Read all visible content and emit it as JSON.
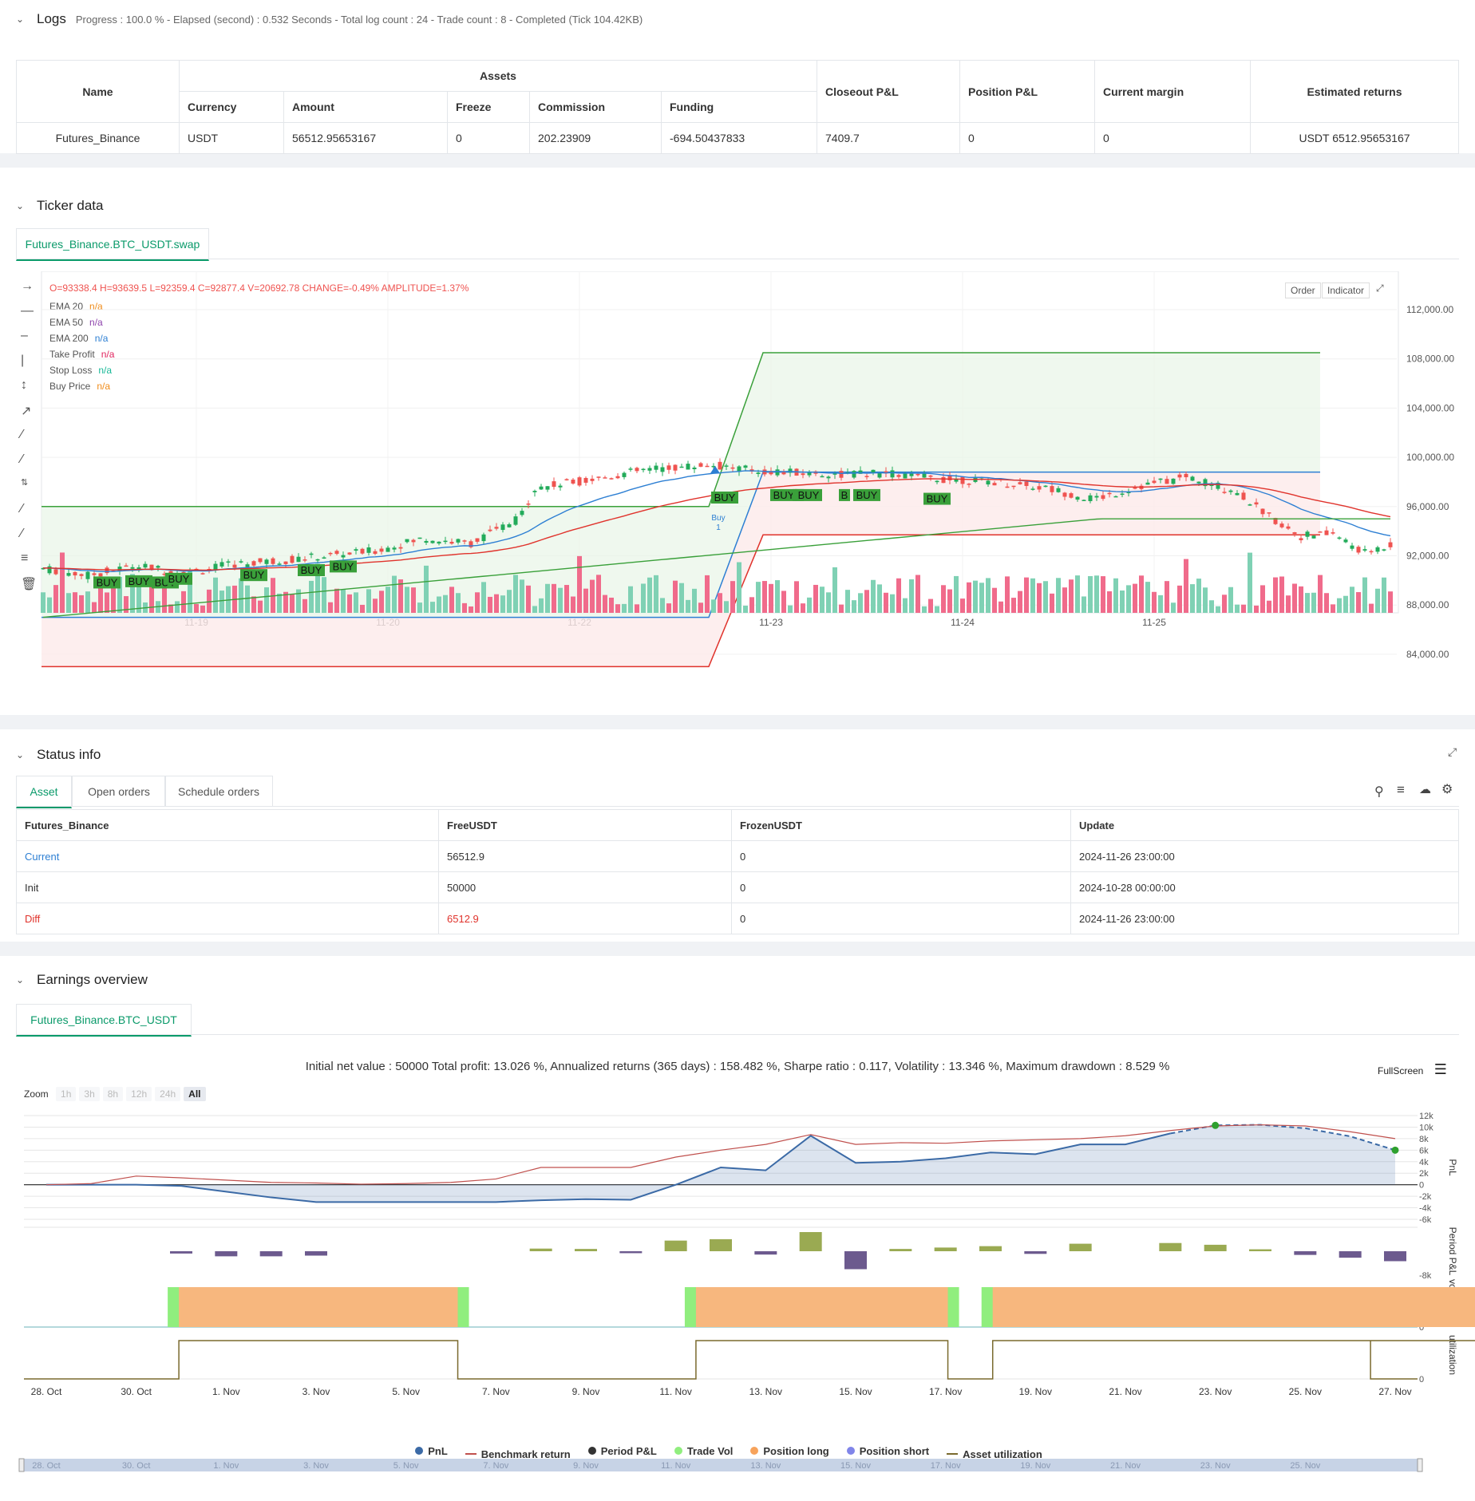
{
  "logs": {
    "title": "Logs",
    "progress": "Progress : 100.0 % - Elapsed (second) : 0.532  Seconds - Total log count : 24 - Trade count : 8 - Completed (Tick 104.42KB)",
    "table": {
      "name_header": "Name",
      "assets_header": "Assets",
      "sub_headers": [
        "Currency",
        "Amount",
        "Freeze",
        "Commission",
        "Funding"
      ],
      "closeout": "Closeout P&L",
      "position": "Position P&L",
      "margin": "Current margin",
      "est": "Estimated returns",
      "row": [
        "Futures_Binance",
        "USDT",
        "56512.95653167",
        "0",
        "202.23909",
        "-694.50437833",
        "7409.7",
        "0",
        "0",
        "USDT 6512.95653167"
      ]
    }
  },
  "ticker": {
    "title": "Ticker data",
    "tab": "Futures_Binance.BTC_USDT.swap",
    "ohlc": "O=93338.4 H=93639.5 L=92359.4 C=92877.4 V=20692.78 CHANGE=-0.49% AMPLITUDE=1.37%",
    "legend": [
      {
        "label": "EMA 20",
        "val": "n/a",
        "color": "#f08c1a"
      },
      {
        "label": "EMA 50",
        "val": "n/a",
        "color": "#8e44ad"
      },
      {
        "label": "EMA 200",
        "val": "n/a",
        "color": "#2d7fd3"
      },
      {
        "label": "Take Profit",
        "val": "n/a",
        "color": "#e0245e"
      },
      {
        "label": "Stop Loss",
        "val": "n/a",
        "color": "#17b897"
      },
      {
        "label": "Buy Price",
        "val": "n/a",
        "color": "#f08c1a"
      }
    ],
    "buttons": {
      "order": "Order",
      "indicator": "Indicator"
    },
    "y_ticks": [
      "112,000.00",
      "108,000.00",
      "104,000.00",
      "100,000.00",
      "96,000.00",
      "92,000.00",
      "88,000.00",
      "84,000.00"
    ],
    "x_ticks": [
      "11-19",
      "11-20",
      "11-22",
      "11-23",
      "11-24",
      "11-25"
    ],
    "buy_label": "BUY",
    "b_label": "B",
    "buy_marker": "Buy",
    "buy_marker_n": "1",
    "colors": {
      "up": "#26a69a",
      "down": "#ef5350",
      "up_bright": "#22ab5a"
    }
  },
  "status": {
    "title": "Status info",
    "tabs": [
      "Asset",
      "Open orders",
      "Schedule orders"
    ],
    "headers": [
      "Futures_Binance",
      "FreeUSDT",
      "FrozenUSDT",
      "Update"
    ],
    "rows": [
      [
        "Current",
        "56512.9",
        "0",
        "2024-11-26 23:00:00"
      ],
      [
        "Init",
        "50000",
        "0",
        "2024-10-28 00:00:00"
      ],
      [
        "Diff",
        "6512.9",
        "0",
        "2024-11-26 23:00:00"
      ]
    ]
  },
  "earnings": {
    "title": "Earnings overview",
    "tab": "Futures_Binance.BTC_USDT",
    "summary": "Initial net value : 50000  Total profit: 13.026 %, Annualized returns (365 days) : 158.482 %, Sharpe ratio : 0.117, Volatility : 13.346 %, Maximum drawdown : 8.529 %",
    "fullscreen": "FullScreen",
    "zoom_label": "Zoom",
    "zoom": [
      "1h",
      "3h",
      "8h",
      "12h",
      "24h",
      "All"
    ],
    "pnl_ticks": [
      "12k",
      "10k",
      "8k",
      "6k",
      "4k",
      "2k",
      "0",
      "-2k",
      "-4k",
      "-6k"
    ],
    "period_ticks": [
      "-8k"
    ],
    "vol_ticks": [
      "0"
    ],
    "util_ticks": [
      "0"
    ],
    "axis_titles": [
      "PnL",
      "Period P&L",
      "vol/position",
      "utilization"
    ],
    "x_ticks": [
      "28. Oct",
      "30. Oct",
      "1. Nov",
      "3. Nov",
      "5. Nov",
      "7. Nov",
      "9. Nov",
      "11. Nov",
      "13. Nov",
      "15. Nov",
      "17. Nov",
      "19. Nov",
      "21. Nov",
      "23. Nov",
      "25. Nov",
      "27. Nov"
    ],
    "nav_ticks": [
      "28. Oct",
      "30. Oct",
      "1. Nov",
      "3. Nov",
      "5. Nov",
      "7. Nov",
      "9. Nov",
      "11. Nov",
      "13. Nov",
      "15. Nov",
      "17. Nov",
      "19. Nov",
      "21. Nov",
      "23. Nov",
      "25. Nov"
    ],
    "legend": [
      {
        "label": "PnL",
        "color": "#3b6aa6",
        "kind": "dot"
      },
      {
        "label": "Benchmark return",
        "color": "#c0504d",
        "kind": "line"
      },
      {
        "label": "Period P&L",
        "color": "#333333",
        "kind": "dot"
      },
      {
        "label": "Trade Vol",
        "color": "#90ee7e",
        "kind": "dot"
      },
      {
        "label": "Position long",
        "color": "#f7a35c",
        "kind": "dot"
      },
      {
        "label": "Position short",
        "color": "#8085e9",
        "kind": "dot"
      },
      {
        "label": "Asset utilization",
        "color": "#7a6a2e",
        "kind": "line"
      }
    ],
    "chart_data": {
      "type": "line",
      "x": [
        "28. Oct",
        "29. Oct",
        "30. Oct",
        "31. Oct",
        "1. Nov",
        "2. Nov",
        "3. Nov",
        "4. Nov",
        "5. Nov",
        "6. Nov",
        "7. Nov",
        "8. Nov",
        "9. Nov",
        "10. Nov",
        "11. Nov",
        "12. Nov",
        "13. Nov",
        "14. Nov",
        "15. Nov",
        "16. Nov",
        "17. Nov",
        "18. Nov",
        "19. Nov",
        "20. Nov",
        "21. Nov",
        "22. Nov",
        "23. Nov",
        "24. Nov",
        "25. Nov",
        "26. Nov",
        "27. Nov"
      ],
      "series": [
        {
          "name": "PnL",
          "values": [
            0,
            0,
            0,
            -200,
            -1200,
            -2200,
            -3000,
            -3000,
            -3000,
            -3000,
            -3000,
            -2700,
            -2500,
            -2600,
            0,
            3000,
            2500,
            8500,
            3800,
            4000,
            4600,
            5600,
            5300,
            7000,
            7000,
            8900,
            10300,
            10400,
            9800,
            8400,
            6000
          ]
        },
        {
          "name": "Benchmark return",
          "values": [
            0,
            200,
            1500,
            1200,
            800,
            400,
            300,
            100,
            200,
            400,
            1000,
            3000,
            3000,
            3000,
            4800,
            6000,
            7000,
            8700,
            7000,
            7300,
            7200,
            7600,
            7800,
            8000,
            8500,
            9400,
            10200,
            10400,
            10200,
            9200,
            8000
          ]
        }
      ],
      "ylim": [
        -6000,
        12000
      ]
    }
  }
}
